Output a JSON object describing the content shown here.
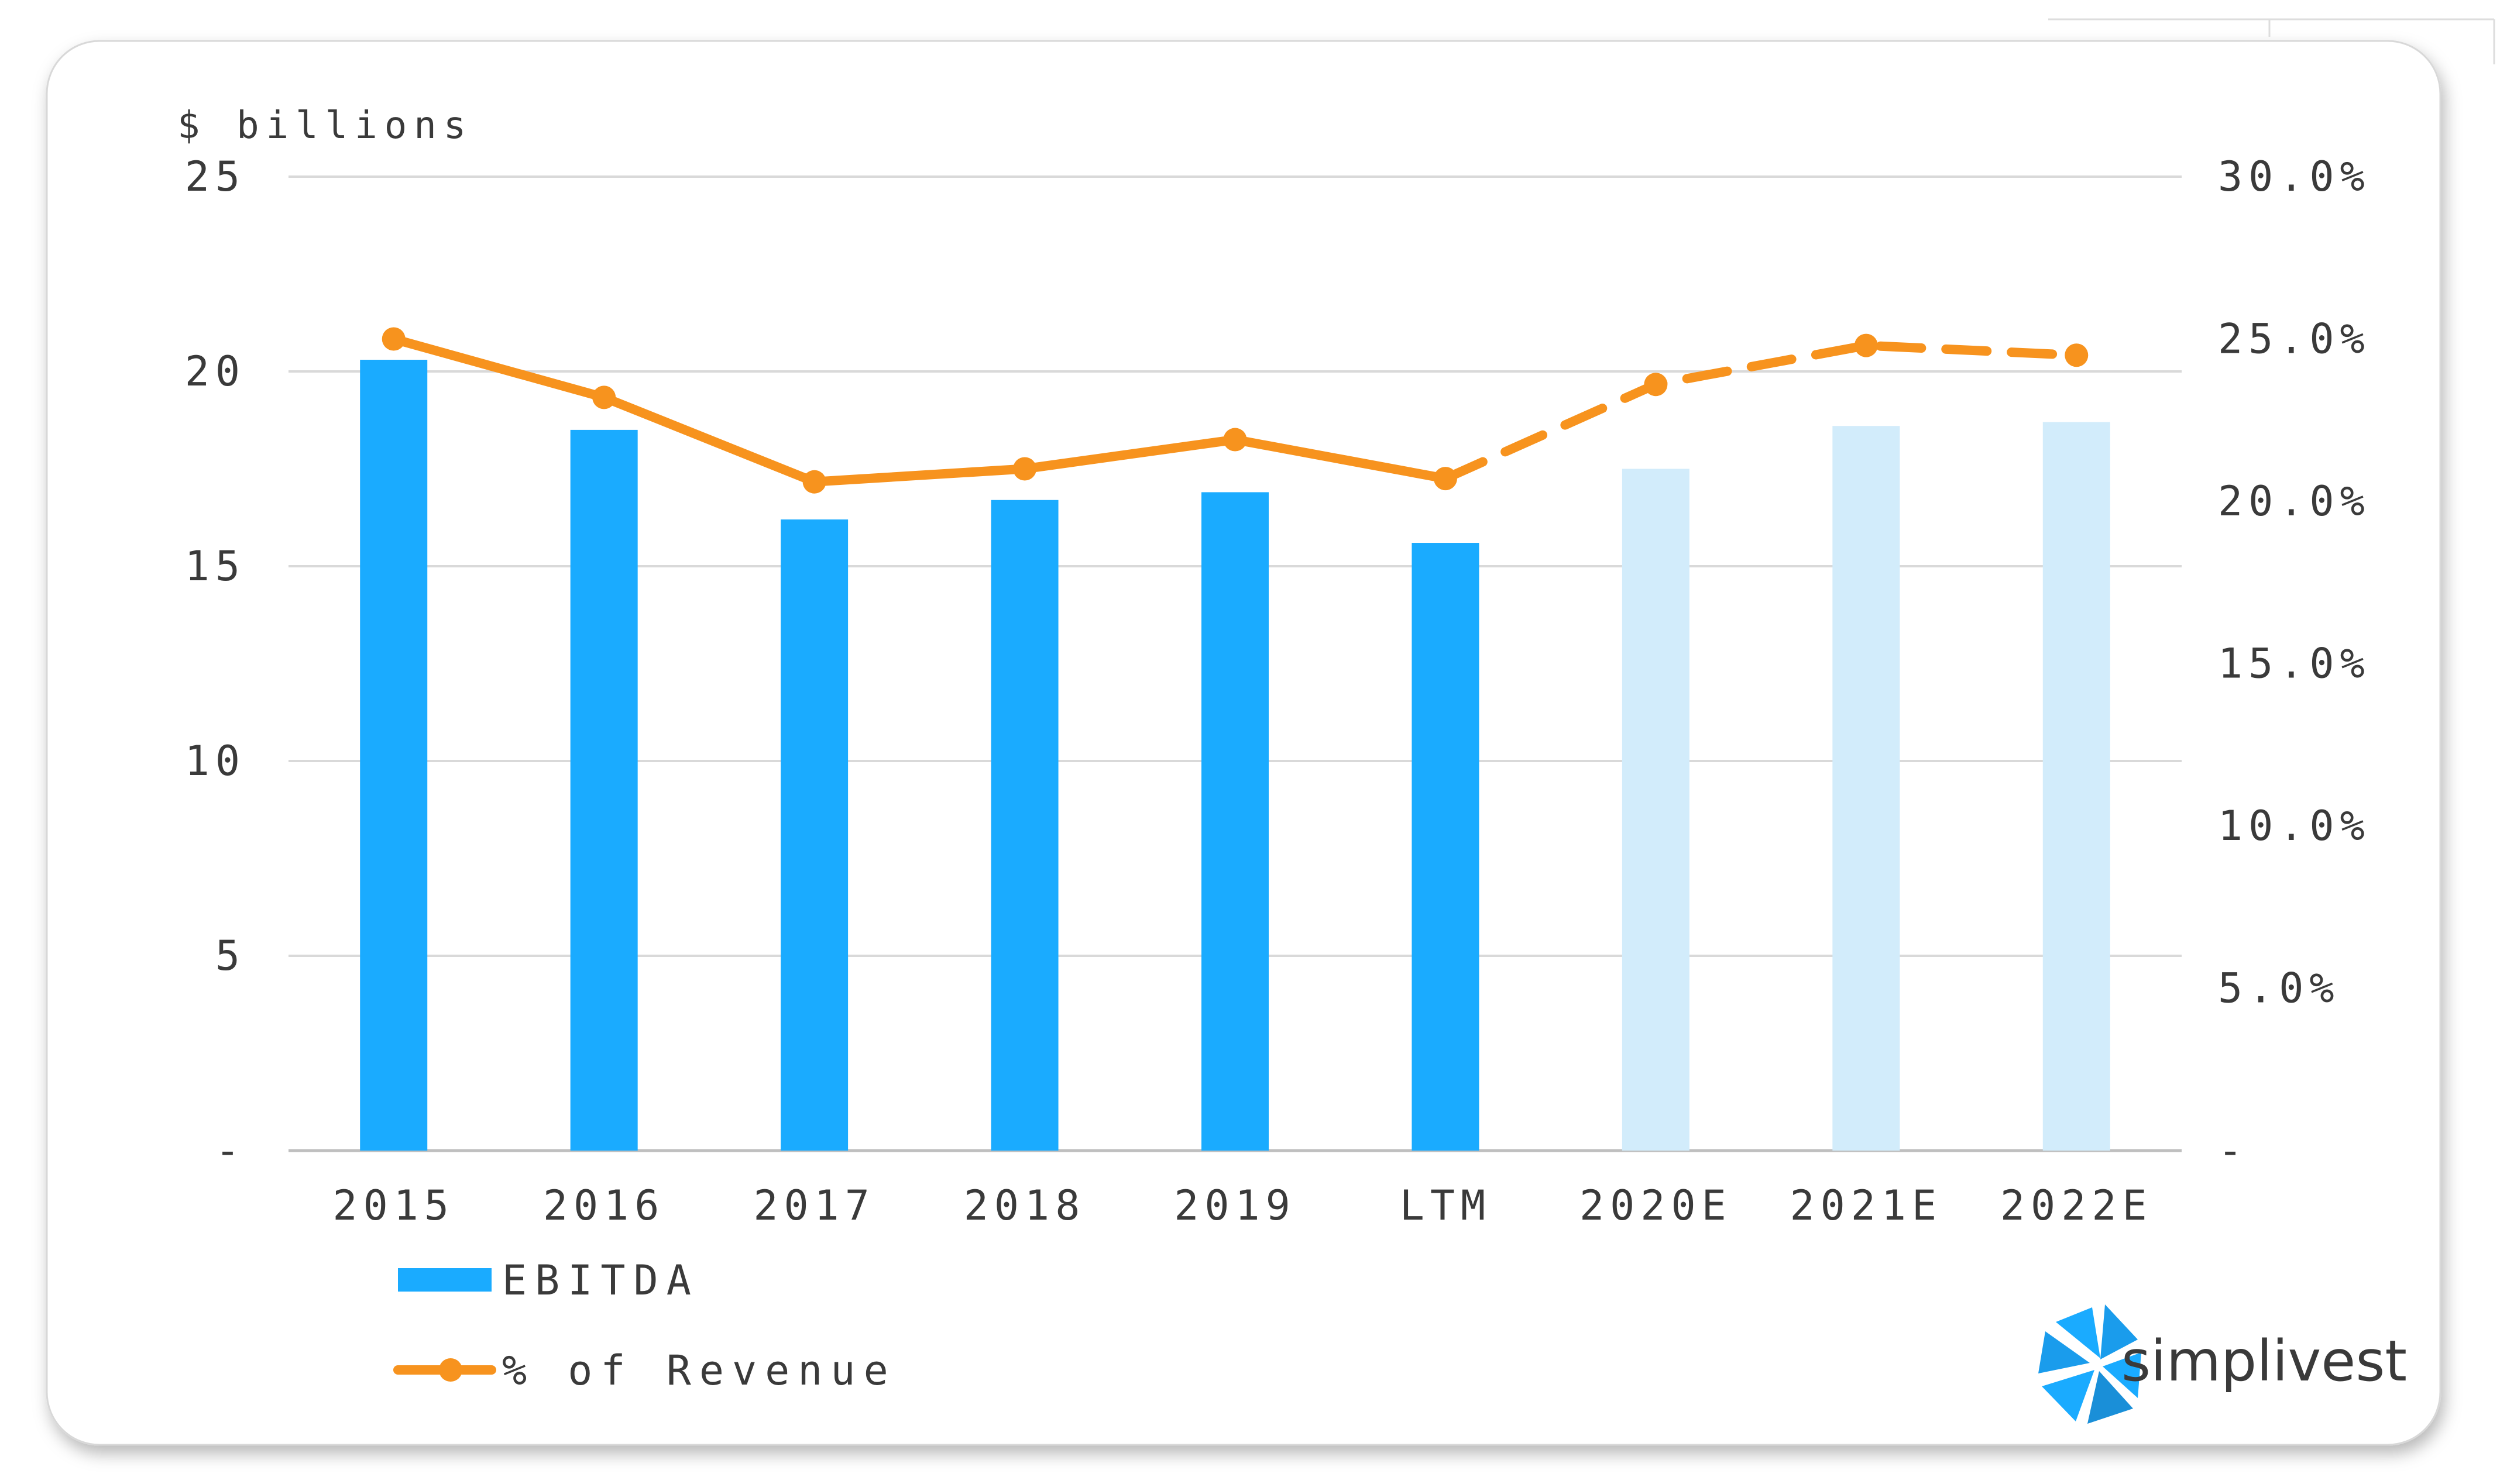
{
  "chart_data": {
    "type": "bar",
    "y_unit_label": "$ billions",
    "categories": [
      "2015",
      "2016",
      "2017",
      "2018",
      "2019",
      "LTM",
      "2020E",
      "2021E",
      "2022E"
    ],
    "estimate_categories": [
      "2020E",
      "2021E",
      "2022E"
    ],
    "series": [
      {
        "name": "EBITDA",
        "type": "bar",
        "axis": "left",
        "values": [
          20.3,
          18.5,
          16.2,
          16.7,
          16.9,
          15.6,
          17.5,
          18.6,
          18.7
        ],
        "color": "#1aabff",
        "estimate_color": "#d2ecfb"
      },
      {
        "name": "% of Revenue",
        "type": "line",
        "axis": "right",
        "values": [
          25.0,
          23.2,
          20.6,
          21.0,
          21.9,
          20.7,
          23.6,
          24.8,
          24.5
        ],
        "color": "#f7931e",
        "dashed_from_category": "LTM"
      }
    ],
    "y_left": {
      "min": 0,
      "max": 25,
      "ticks": [
        "-",
        "5",
        "10",
        "15",
        "20",
        "25"
      ]
    },
    "y_right": {
      "min": 0,
      "max": 30,
      "ticks": [
        "-",
        "5.0%",
        "10.0%",
        "15.0%",
        "20.0%",
        "25.0%",
        "30.0%"
      ]
    },
    "grid": true,
    "legend_position": "bottom-left"
  },
  "brand": {
    "name": "simplivest",
    "colors": {
      "primary": "#1aabff",
      "dark": "#1a8fd8"
    }
  }
}
